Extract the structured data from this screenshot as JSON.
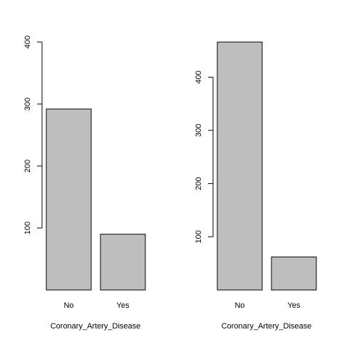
{
  "chart_data": [
    {
      "type": "bar",
      "categories": [
        "No",
        "Yes"
      ],
      "values": [
        292,
        90
      ],
      "xlabel": "Coronary_Artery_Disease",
      "ylabel": "",
      "ylim": [
        0,
        400
      ],
      "yticks": [
        100,
        200,
        300,
        400
      ],
      "grid": false,
      "bar_color": "#bebebe",
      "edge_color": "#000000"
    },
    {
      "type": "bar",
      "categories": [
        "No",
        "Yes"
      ],
      "values": [
        466,
        62
      ],
      "xlabel": "Coronary_Artery_Disease",
      "ylabel": "",
      "ylim": [
        0,
        466
      ],
      "yticks": [
        100,
        200,
        300,
        400
      ],
      "grid": false,
      "bar_color": "#bebebe",
      "edge_color": "#000000"
    }
  ]
}
